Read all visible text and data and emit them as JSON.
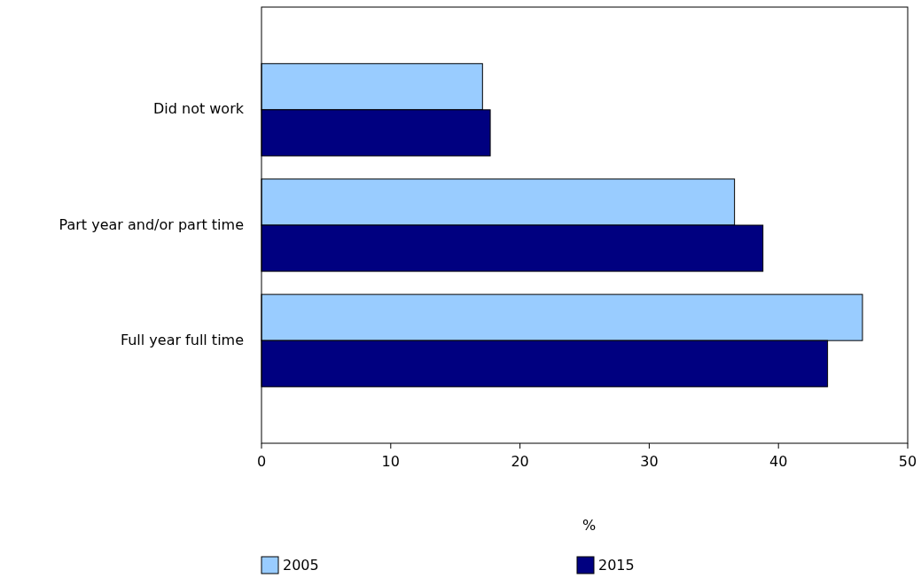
{
  "chart_data": {
    "type": "bar",
    "orientation": "horizontal",
    "categories": [
      "Did not work",
      "Part year and/or part time",
      "Full year full time"
    ],
    "series": [
      {
        "name": "2005",
        "color": "#99ccff",
        "values": [
          17.1,
          36.6,
          46.5
        ]
      },
      {
        "name": "2015",
        "color": "#000080",
        "values": [
          17.7,
          38.8,
          43.8
        ]
      }
    ],
    "xlim": [
      0,
      50
    ],
    "xticks": [
      0,
      10,
      20,
      30,
      40,
      50
    ],
    "xlabel": "%",
    "grid": false,
    "legend": "bottom"
  }
}
